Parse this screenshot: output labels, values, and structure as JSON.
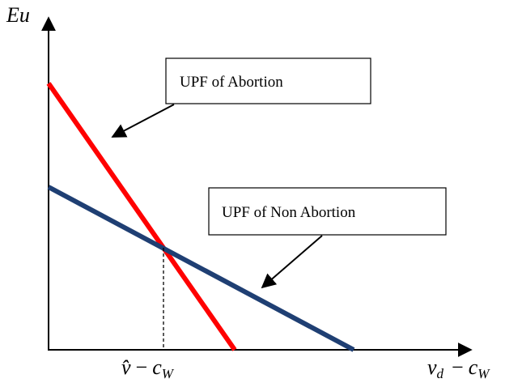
{
  "y_axis_label": "Eu",
  "x_axis_label": {
    "base": "v",
    "subscript": "d",
    "operator": "−",
    "term": "c",
    "term_subscript": "W"
  },
  "marker_label": {
    "base": "v̂",
    "operator": "−",
    "term": "c",
    "term_subscript": "W"
  },
  "curves": [
    {
      "label": "UPF of Abortion"
    },
    {
      "label": "UPF of Non Abortion"
    }
  ]
}
